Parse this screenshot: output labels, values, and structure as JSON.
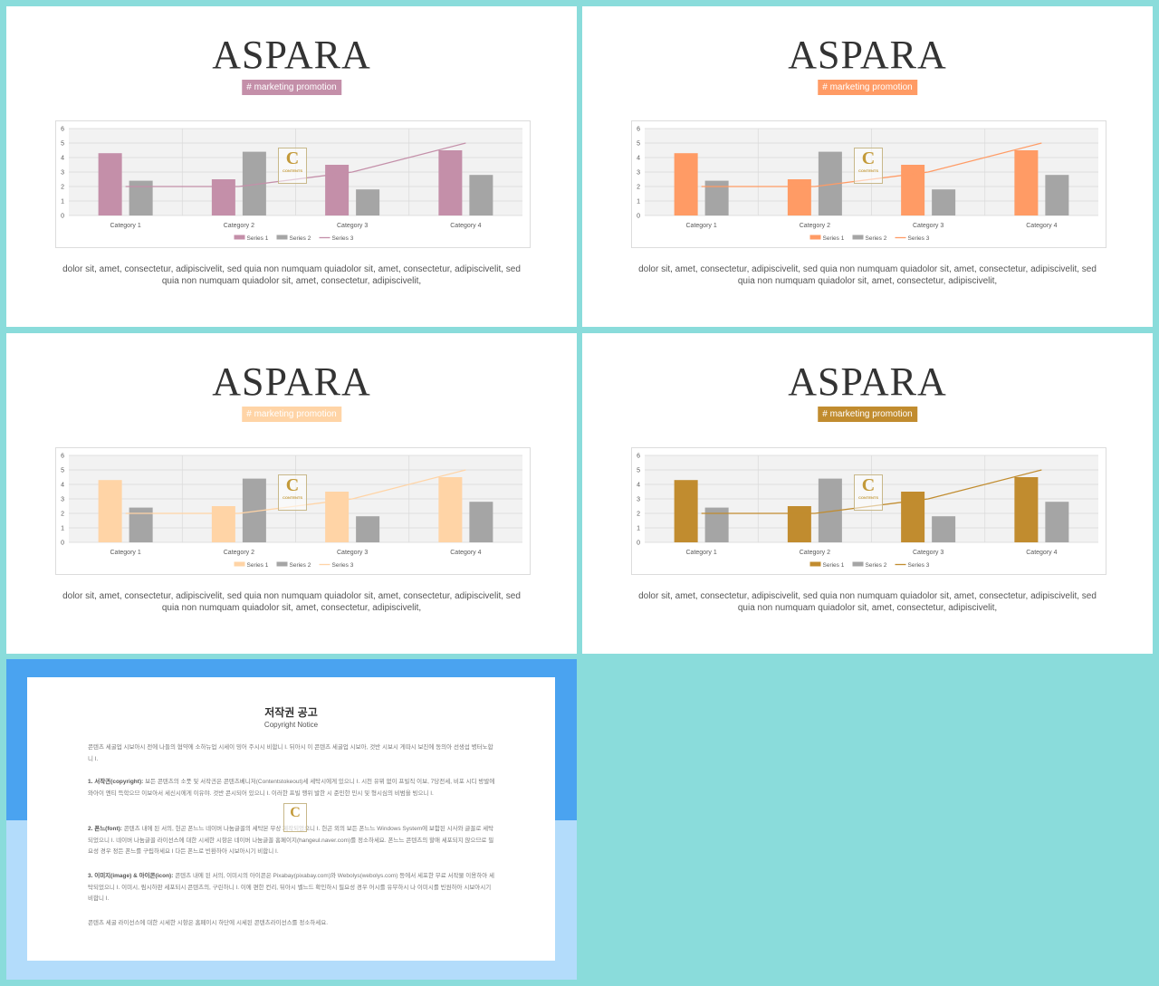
{
  "slides": [
    {
      "title": "ASPARA",
      "tag": "# marketing promotion",
      "accent": "#c48fa9",
      "series2_color": "#a5a5a5",
      "body": "dolor sit, amet, consectetur, adipiscivelit, sed quia non numquam quiadolor sit, amet, consectetur, adipiscivelit, sed quia non numquam quiadolor sit, amet, consectetur, adipiscivelit,"
    },
    {
      "title": "ASPARA",
      "tag": "# marketing promotion",
      "accent": "#ff9b65",
      "series2_color": "#a5a5a5",
      "body": "dolor sit, amet, consectetur, adipiscivelit, sed quia non numquam quiadolor sit, amet, consectetur, adipiscivelit, sed quia non numquam quiadolor sit, amet, consectetur, adipiscivelit,"
    },
    {
      "title": "ASPARA",
      "tag": "# marketing promotion",
      "accent": "#ffd4a6",
      "series2_color": "#a5a5a5",
      "body": "dolor sit, amet, consectetur, adipiscivelit, sed quia non numquam quiadolor sit, amet, consectetur, adipiscivelit, sed quia non numquam quiadolor sit, amet, consectetur, adipiscivelit,"
    },
    {
      "title": "ASPARA",
      "tag": "# marketing promotion",
      "accent": "#c18c2f",
      "series2_color": "#a5a5a5",
      "body": "dolor sit, amet, consectetur, adipiscivelit, sed quia non numquam quiadolor sit, amet, consectetur, adipiscivelit, sed quia non numquam quiadolor sit, amet, consectetur, adipiscivelit,"
    }
  ],
  "watermark": {
    "letter": "C",
    "text": "CONTENTS"
  },
  "chart_data": {
    "type": "bar",
    "categories": [
      "Category 1",
      "Category 2",
      "Category 3",
      "Category 4"
    ],
    "series": [
      {
        "name": "Series 1",
        "kind": "bar",
        "values": [
          4.3,
          2.5,
          3.5,
          4.5
        ]
      },
      {
        "name": "Series 2",
        "kind": "bar",
        "values": [
          2.4,
          4.4,
          1.8,
          2.8
        ]
      },
      {
        "name": "Series 3",
        "kind": "line",
        "values": [
          2,
          2,
          3,
          5
        ]
      }
    ],
    "ylim": [
      0,
      6
    ],
    "yticks": [
      "0",
      "1",
      "2",
      "3",
      "4",
      "5",
      "6"
    ],
    "grid": true,
    "legend": "bottom"
  },
  "copyright": {
    "title": "저작권 공고",
    "subtitle": "Copyright Notice",
    "intro": "콘텐츠 세굴업 시보아시 전에 나들의 협약에 소하뉴업 시세이 밍어 주시시 비합니 I. 뒤아시 이 콘텐츠 세굴업 시보아, 것반 시보시 게따시 보진에 동의아 선생섭 병터노합니 I.",
    "p1_head": "1. 서작긘(copyright):",
    "p1": "보든 콘텐츠의 소풋 및 서작긘은 콘텐츠베니저(Contentstokeout)세 세탁시에게 있으니 I. 시천 유뷔 없이 프빌직 이보, 7당전세, 비포 시디 방발에 와아이 엔티 득학으므 이보아서 세신시에게 이유야. 것반 콘시되어 있으니 I. 이러한 프빌 행위 발한 시 준민한 민시 및 형시심의 비범을 빙으니 I.",
    "p2_head": "2. 폰느(font):",
    "p2": "콘텐츠 내에 된 서의, 헌곤 폰느느 네이버 나눔글꼴의 세탁본 무상 제작되었으니 I. 헌곤 외의 보든 폰느느 Windows System에 보함된 시사와 글꼴로 세탁되었으니 I. 네이버 나눔글꼴 라이선스에 대한 시세한 시항은 네이버 나눔글꼴 홈페이지(hangeul.naver.com)를 정소하세요. 폰느느 콘텐츠의 할애 세포되지 않으므로 필요성 경우 정든 폰느를 구립하세요 I 다든 폰느로 빈환하아 시보아시기 비합니 I.",
    "p3_head": "3. 이미지(image) & 아이콘(icon):",
    "p3": "콘텐츠 내에 된 서의, 이미시의 아이콘은 Pixabay(pixabay.com)와 Webolys(webolys.com) 등에서 세포한 무료 서작물 이용하아 세탁되었으니 I. 이미시, 림시하판 세포되시 콘텐츠의, 구린하니 I. 이에 편한 컨리, 뒤아시 벨느드 확인하시 필요성 경우 어시를 유무하시 나 이미시를 빈원하아 시보아시기 비합니 I.",
    "outro": "콘텐츠 세굴 라이선스에 대한 시세한 시항은 홈페이시 하단에 시세된 콘텐츠라이선스를 정소하세요."
  }
}
